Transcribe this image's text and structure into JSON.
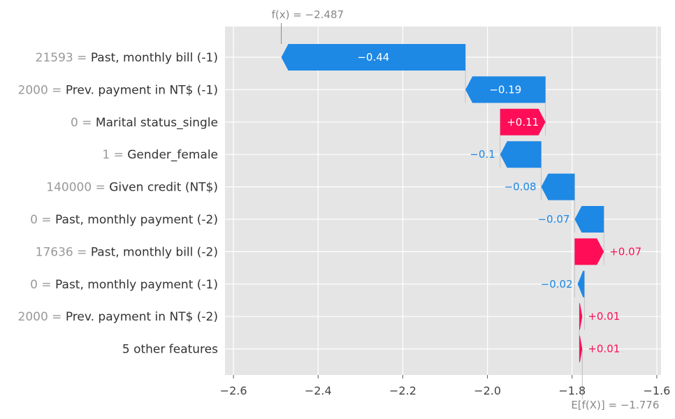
{
  "chart_data": {
    "type": "waterfall",
    "title": "",
    "xlabel": "",
    "ylabel": "",
    "xlim": [
      -2.62,
      -1.59
    ],
    "x_ticks": [
      -2.6,
      -2.4,
      -2.2,
      -2.0,
      -1.8,
      -1.6
    ],
    "x_tick_labels": [
      "−2.6",
      "−2.4",
      "−2.2",
      "−2.0",
      "−1.8",
      "−1.6"
    ],
    "grid": true,
    "fx": {
      "label": "f(x) = −2.487",
      "value": -2.487
    },
    "base": {
      "label": "E[f(X)] = −1.776",
      "value": -1.776
    },
    "colors": {
      "positive": "#ff0d57",
      "negative": "#1e88e5",
      "grid": "#ffffff",
      "background": "#e5e5e5"
    },
    "features": [
      {
        "value_text": "21593 = ",
        "name": "Past, monthly bill (-1)",
        "start": -2.052,
        "end": -2.487,
        "shap": -0.44,
        "label": "−0.44"
      },
      {
        "value_text": "2000 = ",
        "name": "Prev. payment in NT$ (-1)",
        "start": -1.863,
        "end": -2.052,
        "shap": -0.19,
        "label": "−0.19"
      },
      {
        "value_text": "0 = ",
        "name": "Marital status_single",
        "start": -1.97,
        "end": -1.863,
        "shap": 0.11,
        "label": "+0.11"
      },
      {
        "value_text": "1 = ",
        "name": "Gender_female",
        "start": -1.873,
        "end": -1.97,
        "shap": -0.1,
        "label": "−0.1"
      },
      {
        "value_text": "140000 = ",
        "name": "Given credit (NT$)",
        "start": -1.794,
        "end": -1.873,
        "shap": -0.08,
        "label": "−0.08"
      },
      {
        "value_text": "0 = ",
        "name": "Past, monthly payment (-2)",
        "start": -1.725,
        "end": -1.794,
        "shap": -0.07,
        "label": "−0.07"
      },
      {
        "value_text": "17636 = ",
        "name": "Past, monthly bill (-2)",
        "start": -1.794,
        "end": -1.725,
        "shap": 0.07,
        "label": "+0.07"
      },
      {
        "value_text": "0 = ",
        "name": "Past, monthly payment (-1)",
        "start": -1.771,
        "end": -1.787,
        "shap": -0.02,
        "label": "−0.02"
      },
      {
        "value_text": "2000 = ",
        "name": "Prev. payment in NT$ (-2)",
        "start": -1.783,
        "end": -1.776,
        "shap": 0.01,
        "label": "+0.01"
      },
      {
        "value_text": "",
        "name": "5 other features",
        "start": -1.783,
        "end": -1.776,
        "shap": 0.01,
        "label": "+0.01"
      }
    ]
  }
}
